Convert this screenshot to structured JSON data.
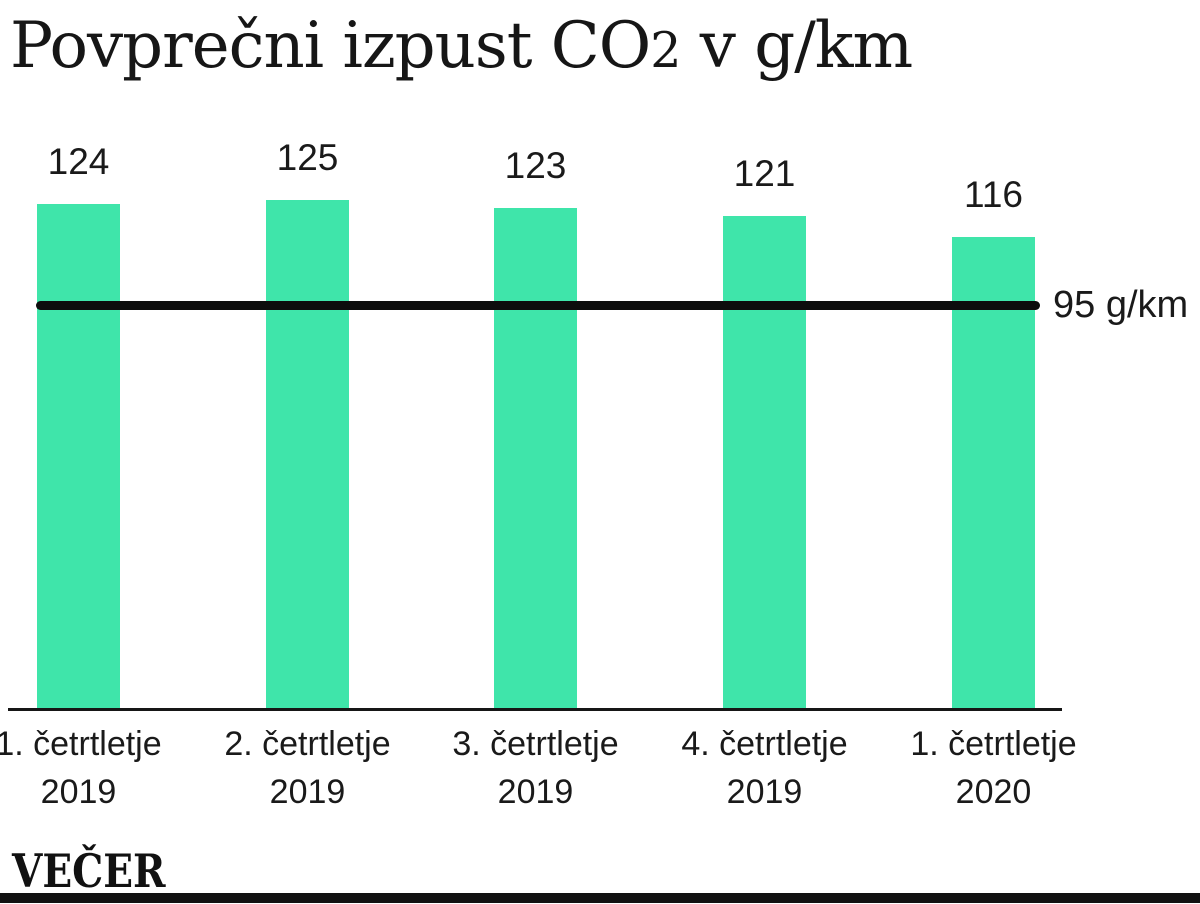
{
  "page": {
    "background": "#ffffff"
  },
  "title": {
    "text": "Povprečni izpust CO2 v g/km",
    "part1": "Povprečni izpust CO",
    "subscript": "2",
    "part2": " v g/km"
  },
  "chart_data": {
    "type": "bar",
    "categories": [
      "1. četrtletje 2019",
      "2. četrtletje 2019",
      "3. četrtletje 2019",
      "4. četrtletje 2019",
      "1. četrtletje 2020"
    ],
    "values": [
      124,
      125,
      123,
      121,
      116
    ],
    "title": "Povprečni izpust CO2 v g/km",
    "xlabel": "",
    "ylabel": "",
    "ylim": [
      0,
      140
    ],
    "grid": false,
    "legend": false,
    "value_labels_shown": true,
    "bar_color": "#3FE5AA",
    "reference_line": {
      "value": 95,
      "label": "95 g/km",
      "color": "#0d0d0d"
    }
  },
  "branding": {
    "logo_text": "VEČER"
  },
  "colors": {
    "bar": "#3FE5AA",
    "text": "#1a1a1a",
    "line": "#111111"
  }
}
